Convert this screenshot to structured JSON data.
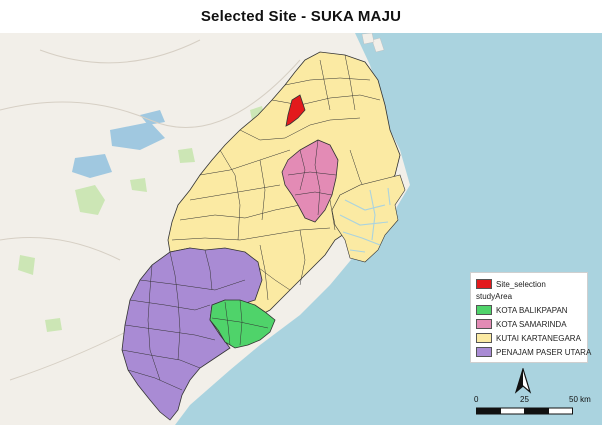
{
  "title": "Selected Site - SUKA MAJU",
  "colors": {
    "sea": "#aad3df",
    "land": "#f2efe9",
    "forest": "#c8e6b0",
    "lake": "#a0c8e0",
    "site_selection": "#e31a1c",
    "kota_balikpapan": "#4fd36a",
    "kota_samarinda": "#e38bb5",
    "kutai_kartanegara": "#fbeaa3",
    "penajam_paser_utara": "#a98bd4",
    "boundary": "#333333"
  },
  "legend": {
    "site_label": "Site_selection",
    "group_label": "studyArea",
    "items": [
      {
        "label": "KOTA BALIKPAPAN",
        "color": "#4fd36a"
      },
      {
        "label": "KOTA SAMARINDA",
        "color": "#e38bb5"
      },
      {
        "label": "KUTAI KARTANEGARA",
        "color": "#fbeaa3"
      },
      {
        "label": "PENAJAM PASER UTARA",
        "color": "#a98bd4"
      }
    ]
  },
  "north_arrow": {
    "label": "N"
  },
  "scale": {
    "ticks": [
      "0",
      "25",
      "50 km"
    ]
  }
}
